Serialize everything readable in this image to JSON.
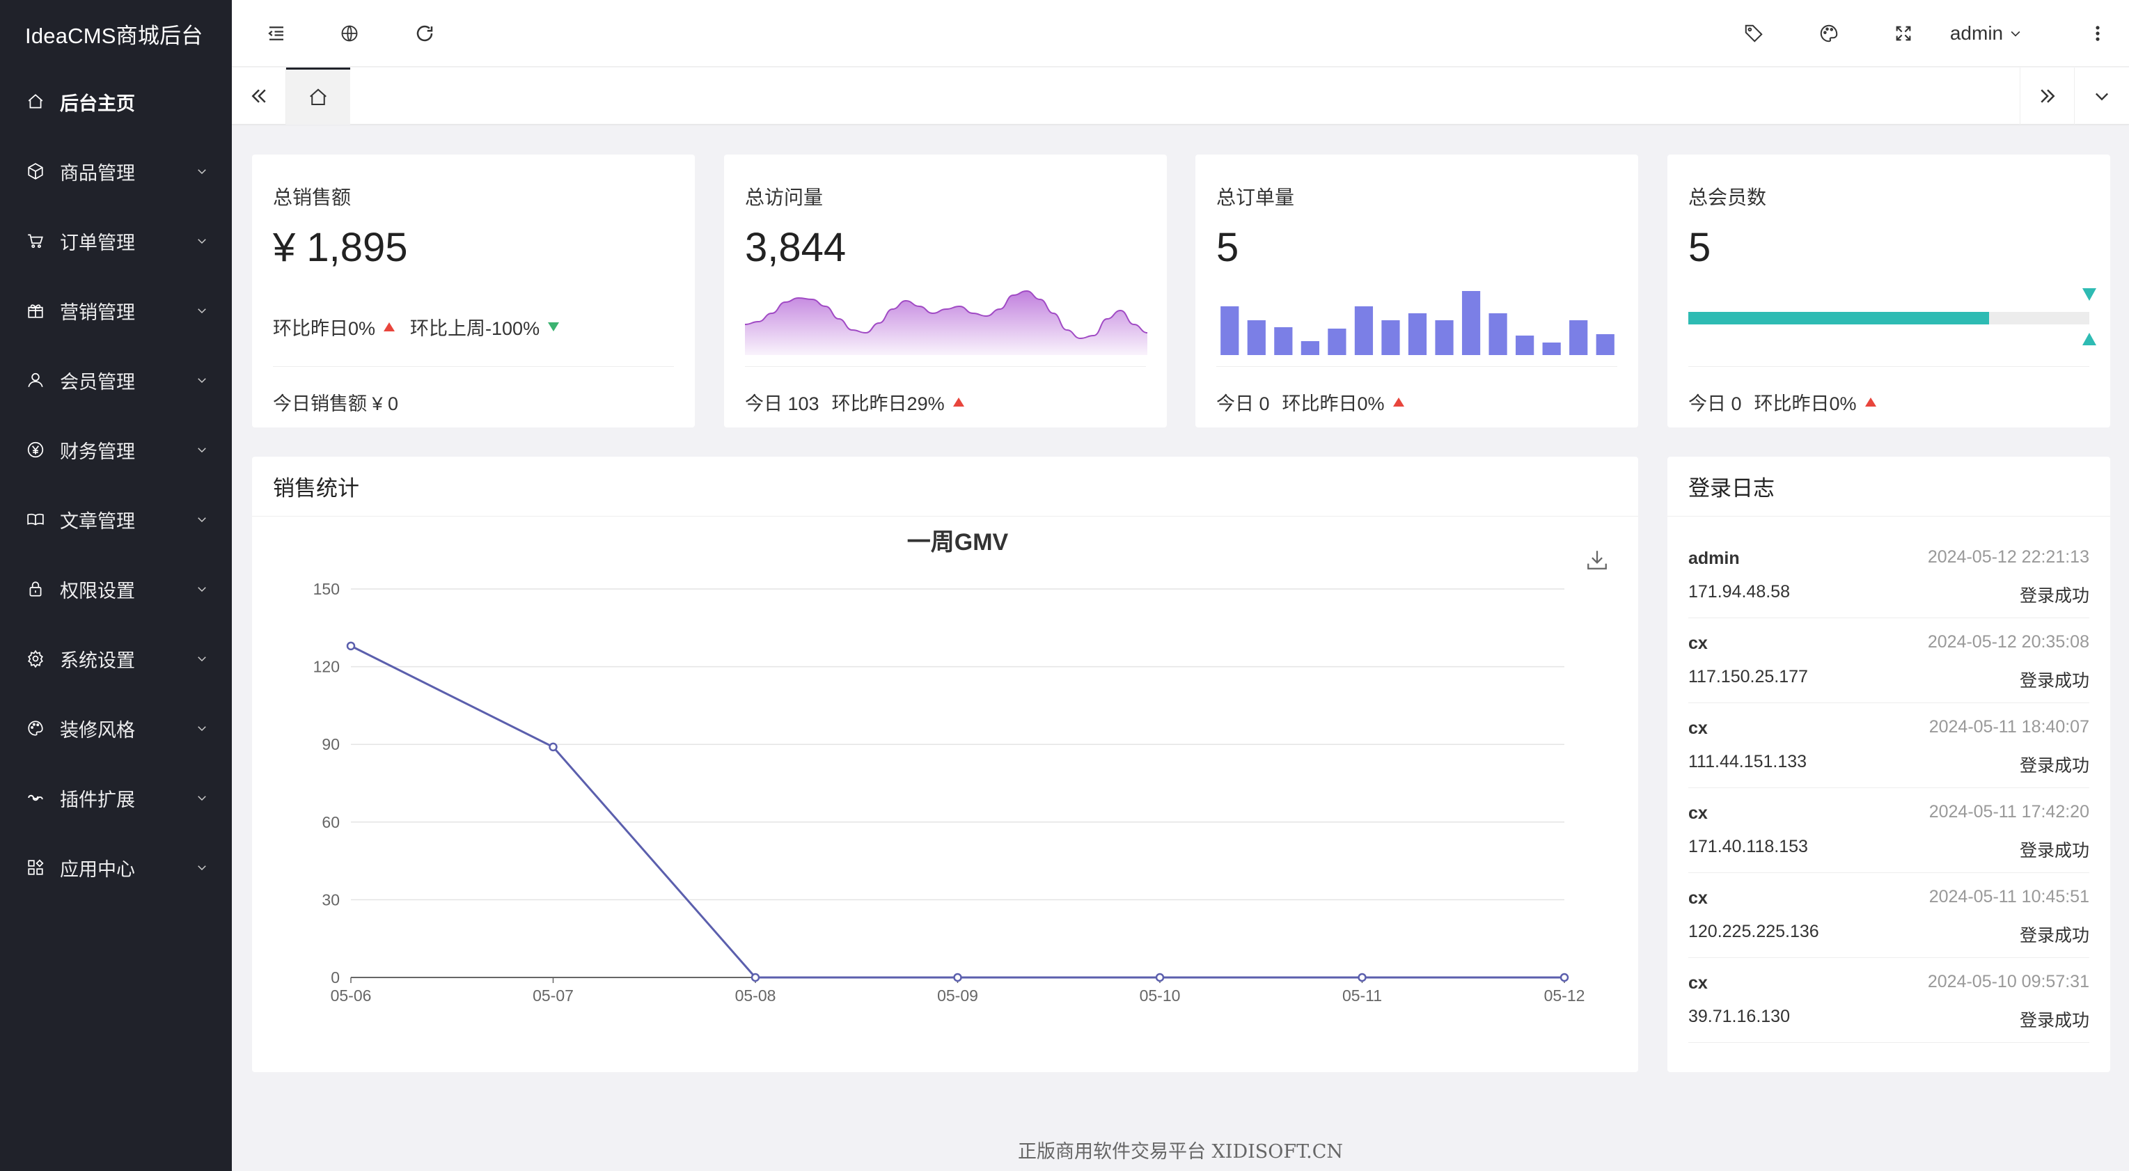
{
  "app": {
    "title": "IdeaCMS商城后台"
  },
  "sidebar": {
    "items": [
      {
        "label": "后台主页",
        "icon": "home-icon"
      },
      {
        "label": "商品管理",
        "icon": "box-icon"
      },
      {
        "label": "订单管理",
        "icon": "cart-icon"
      },
      {
        "label": "营销管理",
        "icon": "gift-icon"
      },
      {
        "label": "会员管理",
        "icon": "user-icon"
      },
      {
        "label": "财务管理",
        "icon": "yen-icon"
      },
      {
        "label": "文章管理",
        "icon": "book-icon"
      },
      {
        "label": "权限设置",
        "icon": "lock-icon"
      },
      {
        "label": "系统设置",
        "icon": "gear-icon"
      },
      {
        "label": "装修风格",
        "icon": "palette-icon"
      },
      {
        "label": "插件扩展",
        "icon": "link-icon"
      },
      {
        "label": "应用中心",
        "icon": "apps-icon"
      }
    ]
  },
  "header": {
    "user": "admin"
  },
  "stats": {
    "sales": {
      "title": "总销售额",
      "value": "¥ 1,895",
      "day": "环比昨日0%",
      "week": "环比上周-100%",
      "footer": "今日销售额 ¥ 0"
    },
    "visits": {
      "title": "总访问量",
      "value": "3,844",
      "today": "今日 103",
      "compare": "环比昨日29%",
      "sparkline": [
        22,
        24,
        30,
        38,
        41,
        40,
        35,
        26,
        18,
        16,
        23,
        33,
        39,
        35,
        30,
        33,
        35,
        30,
        28,
        33,
        43,
        46,
        40,
        30,
        18,
        12,
        14,
        26,
        32,
        22,
        16
      ]
    },
    "orders": {
      "title": "总订单量",
      "value": "5",
      "today": "今日 0",
      "compare": "环比昨日0%",
      "bars": [
        35,
        25,
        20,
        10,
        19,
        35,
        25,
        30,
        25,
        46,
        30,
        14,
        9,
        25,
        15
      ]
    },
    "members": {
      "title": "总会员数",
      "value": "5",
      "today": "今日 0",
      "compare": "环比昨日0%",
      "progress": 0.75
    }
  },
  "sales_panel": {
    "title": "销售统计"
  },
  "chart_data": {
    "type": "line",
    "title": "一周GMV",
    "categories": [
      "05-06",
      "05-07",
      "05-08",
      "05-09",
      "05-10",
      "05-11",
      "05-12"
    ],
    "values": [
      128,
      89,
      0,
      0,
      0,
      0,
      0
    ],
    "ylim": [
      0,
      150
    ],
    "yticks": [
      0,
      30,
      60,
      90,
      120,
      150
    ],
    "color": "#5b5fad",
    "grid": true
  },
  "login_log": {
    "title": "登录日志",
    "entries": [
      {
        "user": "admin",
        "time": "2024-05-12 22:21:13",
        "ip": "171.94.48.58",
        "status": "登录成功"
      },
      {
        "user": "cx",
        "time": "2024-05-12 20:35:08",
        "ip": "117.150.25.177",
        "status": "登录成功"
      },
      {
        "user": "cx",
        "time": "2024-05-11 18:40:07",
        "ip": "111.44.151.133",
        "status": "登录成功"
      },
      {
        "user": "cx",
        "time": "2024-05-11 17:42:20",
        "ip": "171.40.118.153",
        "status": "登录成功"
      },
      {
        "user": "cx",
        "time": "2024-05-11 10:45:51",
        "ip": "120.225.225.136",
        "status": "登录成功"
      },
      {
        "user": "cx",
        "time": "2024-05-10 09:57:31",
        "ip": "39.71.16.130",
        "status": "登录成功"
      }
    ]
  },
  "footer": {
    "text": "正版商用软件交易平台 XIDISOFT.CN"
  },
  "colors": {
    "sidebar": "#20222a",
    "accent": "#2ebbb3",
    "bars": "#7b7fe6",
    "area": "#b66ad8",
    "line": "#5b5fad",
    "up": "#e8453c",
    "down": "#3cb371"
  }
}
